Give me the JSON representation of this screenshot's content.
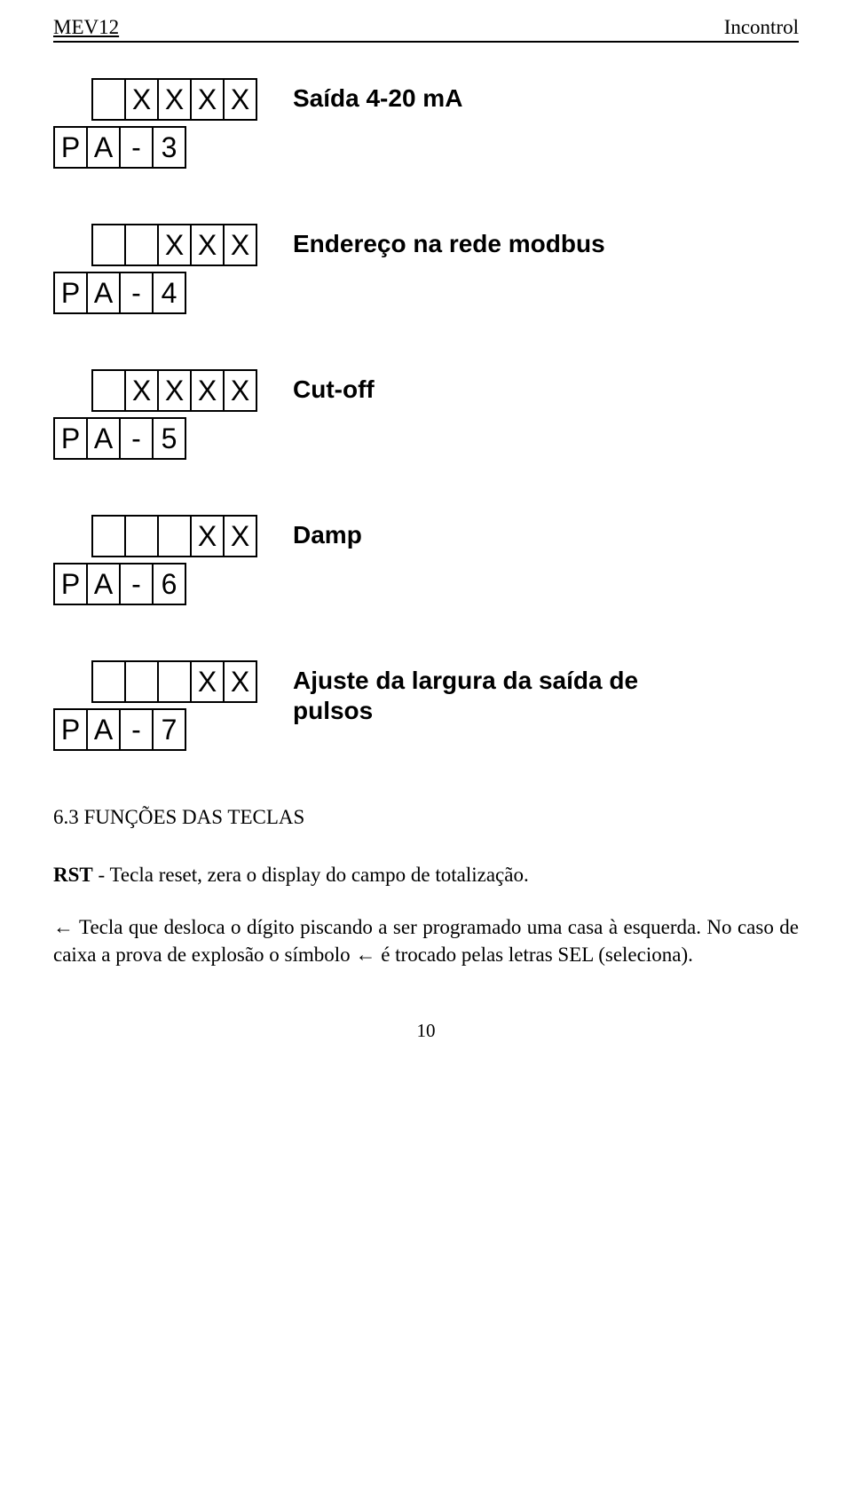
{
  "header": {
    "left": "MEV12",
    "right": "Incontrol"
  },
  "params": [
    {
      "top": {
        "indent": 1,
        "cells": [
          "",
          "X",
          "X",
          "X",
          "X"
        ]
      },
      "bottom": {
        "indent": 0,
        "cells": [
          "P",
          "A",
          "-",
          "3"
        ]
      },
      "label": "Saída 4-20 mA"
    },
    {
      "top": {
        "indent": 1,
        "cells": [
          "",
          "",
          "X",
          "X",
          "X"
        ]
      },
      "bottom": {
        "indent": 0,
        "cells": [
          "P",
          "A",
          "-",
          "4"
        ]
      },
      "label": "Endereço na rede modbus"
    },
    {
      "top": {
        "indent": 1,
        "cells": [
          "",
          "X",
          "X",
          "X",
          "X"
        ]
      },
      "bottom": {
        "indent": 0,
        "cells": [
          "P",
          "A",
          "-",
          "5"
        ]
      },
      "label": "Cut-off"
    },
    {
      "top": {
        "indent": 1,
        "cells": [
          "",
          "",
          "",
          "X",
          "X"
        ]
      },
      "bottom": {
        "indent": 0,
        "cells": [
          "P",
          "A",
          "-",
          "6"
        ]
      },
      "label": "Damp"
    },
    {
      "top": {
        "indent": 1,
        "cells": [
          "",
          "",
          "",
          "X",
          "X"
        ]
      },
      "bottom": {
        "indent": 0,
        "cells": [
          "P",
          "A",
          "-",
          "7"
        ]
      },
      "label": "Ajuste da largura da saída de pulsos"
    }
  ],
  "section_title": "6.3 FUNÇÕES DAS TECLAS",
  "para1_prefix": "RST",
  "para1_rest": " - Tecla reset, zera o display do campo de totalização.",
  "para2_arrow": "←",
  "para2_part1": " Tecla que desloca o dígito piscando a ser programado uma casa à esquerda. No caso de caixa a prova de explosão o símbolo ",
  "para2_arrow2": "←",
  "para2_part2": " é trocado pelas letras SEL (seleciona).",
  "page_number": "10"
}
